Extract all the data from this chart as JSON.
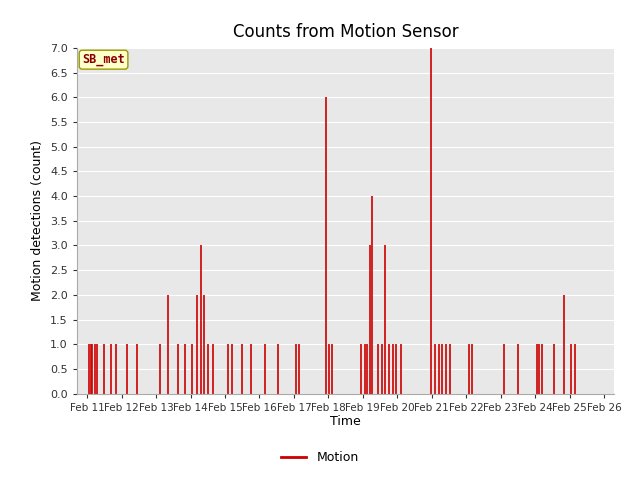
{
  "title": "Counts from Motion Sensor",
  "xlabel": "Time",
  "ylabel": "Motion detections (count)",
  "ylim": [
    0,
    7.0
  ],
  "yticks": [
    0.0,
    0.5,
    1.0,
    1.5,
    2.0,
    2.5,
    3.0,
    3.5,
    4.0,
    4.5,
    5.0,
    5.5,
    6.0,
    6.5,
    7.0
  ],
  "legend_label": "Motion",
  "legend_color": "#cc0000",
  "bar_color": "#cc0000",
  "background_color": "#e8e8e8",
  "label_box_text": "SB_met",
  "label_box_facecolor": "#ffffcc",
  "label_box_edgecolor": "#999900",
  "label_box_textcolor": "#880000",
  "x_tick_labels": [
    "Feb 11",
    "Feb 12",
    "Feb 13",
    "Feb 14",
    "Feb 15",
    "Feb 16",
    "Feb 17",
    "Feb 18",
    "Feb 19",
    "Feb 20",
    "Feb 21",
    "Feb 22",
    "Feb 23",
    "Feb 24",
    "Feb 25",
    "Feb 26"
  ],
  "data_points": [
    {
      "day": 0.05,
      "count": 1
    },
    {
      "day": 0.1,
      "count": 1
    },
    {
      "day": 0.15,
      "count": 1
    },
    {
      "day": 0.22,
      "count": 1
    },
    {
      "day": 0.3,
      "count": 1
    },
    {
      "day": 0.5,
      "count": 1
    },
    {
      "day": 0.7,
      "count": 1
    },
    {
      "day": 0.85,
      "count": 1
    },
    {
      "day": 1.15,
      "count": 1
    },
    {
      "day": 1.45,
      "count": 1
    },
    {
      "day": 2.1,
      "count": 1
    },
    {
      "day": 2.35,
      "count": 2
    },
    {
      "day": 2.65,
      "count": 1
    },
    {
      "day": 2.85,
      "count": 1
    },
    {
      "day": 3.05,
      "count": 1
    },
    {
      "day": 3.2,
      "count": 2
    },
    {
      "day": 3.3,
      "count": 3
    },
    {
      "day": 3.4,
      "count": 2
    },
    {
      "day": 3.52,
      "count": 1
    },
    {
      "day": 3.65,
      "count": 1
    },
    {
      "day": 4.1,
      "count": 1
    },
    {
      "day": 4.2,
      "count": 1
    },
    {
      "day": 4.5,
      "count": 1
    },
    {
      "day": 4.75,
      "count": 1
    },
    {
      "day": 5.15,
      "count": 1
    },
    {
      "day": 5.55,
      "count": 1
    },
    {
      "day": 6.05,
      "count": 1
    },
    {
      "day": 6.15,
      "count": 1
    },
    {
      "day": 6.92,
      "count": 6
    },
    {
      "day": 7.02,
      "count": 1
    },
    {
      "day": 7.1,
      "count": 1
    },
    {
      "day": 7.95,
      "count": 1
    },
    {
      "day": 8.05,
      "count": 1
    },
    {
      "day": 8.13,
      "count": 1
    },
    {
      "day": 8.2,
      "count": 3
    },
    {
      "day": 8.28,
      "count": 4
    },
    {
      "day": 8.45,
      "count": 1
    },
    {
      "day": 8.55,
      "count": 1
    },
    {
      "day": 8.65,
      "count": 3
    },
    {
      "day": 8.75,
      "count": 1
    },
    {
      "day": 8.88,
      "count": 1
    },
    {
      "day": 8.95,
      "count": 1
    },
    {
      "day": 9.1,
      "count": 1
    },
    {
      "day": 9.97,
      "count": 7
    },
    {
      "day": 10.1,
      "count": 1
    },
    {
      "day": 10.2,
      "count": 1
    },
    {
      "day": 10.3,
      "count": 1
    },
    {
      "day": 10.42,
      "count": 1
    },
    {
      "day": 10.52,
      "count": 1
    },
    {
      "day": 11.08,
      "count": 1
    },
    {
      "day": 11.18,
      "count": 1
    },
    {
      "day": 12.1,
      "count": 1
    },
    {
      "day": 12.5,
      "count": 1
    },
    {
      "day": 13.05,
      "count": 1
    },
    {
      "day": 13.12,
      "count": 1
    },
    {
      "day": 13.2,
      "count": 1
    },
    {
      "day": 13.55,
      "count": 1
    },
    {
      "day": 13.85,
      "count": 2
    },
    {
      "day": 14.05,
      "count": 1
    },
    {
      "day": 14.15,
      "count": 1
    }
  ]
}
